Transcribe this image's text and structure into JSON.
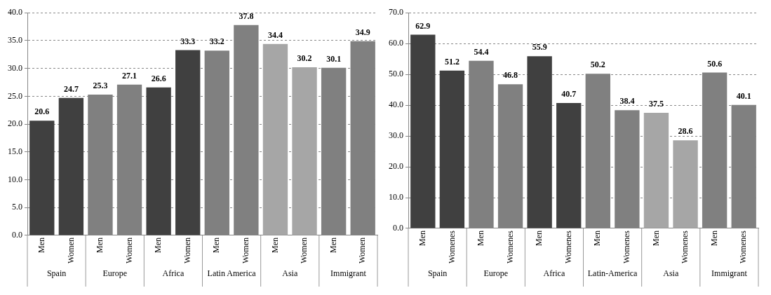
{
  "chart_data": [
    {
      "type": "bar",
      "categories": [
        "Men",
        "Women",
        "Men",
        "Women",
        "Men",
        "Women",
        "Men",
        "Women",
        "Men",
        "Women",
        "Men",
        "Women"
      ],
      "values": [
        20.6,
        24.7,
        25.3,
        27.1,
        26.6,
        33.3,
        33.2,
        37.8,
        34.4,
        30.2,
        30.1,
        34.9
      ],
      "colors": [
        "#404040",
        "#404040",
        "#808080",
        "#808080",
        "#404040",
        "#404040",
        "#808080",
        "#808080",
        "#a6a6a6",
        "#a6a6a6",
        "#808080",
        "#808080"
      ],
      "annotations": [
        "Spain",
        "Europe",
        "Africa",
        "Latin America",
        "Asia",
        "Immigrant"
      ],
      "ylim": [
        0,
        40
      ],
      "yticks": [
        {
          "value": 0,
          "label": "0.0"
        },
        {
          "value": 5,
          "label": "5.0"
        },
        {
          "value": 10,
          "label": "10.0"
        },
        {
          "value": 15,
          "label": "15.0"
        },
        {
          "value": 20,
          "label": "20.0"
        },
        {
          "value": 25,
          "label": "25.0"
        },
        {
          "value": 30,
          "label": "30.0"
        },
        {
          "value": 35,
          "label": "35.0"
        },
        {
          "value": 40,
          "label": "40.0"
        }
      ],
      "grid": "y",
      "data_labels": true
    },
    {
      "type": "bar",
      "categories": [
        "Men",
        "Womenes",
        "Men",
        "Womenes",
        "Men",
        "Womenes",
        "Men",
        "Womenes",
        "Men",
        "Womenes",
        "Men",
        "Womenes"
      ],
      "values": [
        62.9,
        51.2,
        54.4,
        46.8,
        55.9,
        40.7,
        50.2,
        38.4,
        37.5,
        28.6,
        50.6,
        40.1
      ],
      "colors": [
        "#404040",
        "#404040",
        "#808080",
        "#808080",
        "#404040",
        "#404040",
        "#808080",
        "#808080",
        "#a6a6a6",
        "#a6a6a6",
        "#808080",
        "#808080"
      ],
      "annotations": [
        "Spain",
        "Europe",
        "Africa",
        "Latin-America",
        "Asia",
        "Immigrant"
      ],
      "ylim": [
        0,
        70
      ],
      "yticks": [
        {
          "value": 0,
          "label": "0.0"
        },
        {
          "value": 10,
          "label": "10.0"
        },
        {
          "value": 20,
          "label": "20.0"
        },
        {
          "value": 30,
          "label": "30.0"
        },
        {
          "value": 40,
          "label": "40.0"
        },
        {
          "value": 50,
          "label": "50.0"
        },
        {
          "value": 60,
          "label": "60.0"
        },
        {
          "value": 70,
          "label": "70.0"
        }
      ],
      "grid": "y",
      "data_labels": true
    }
  ]
}
